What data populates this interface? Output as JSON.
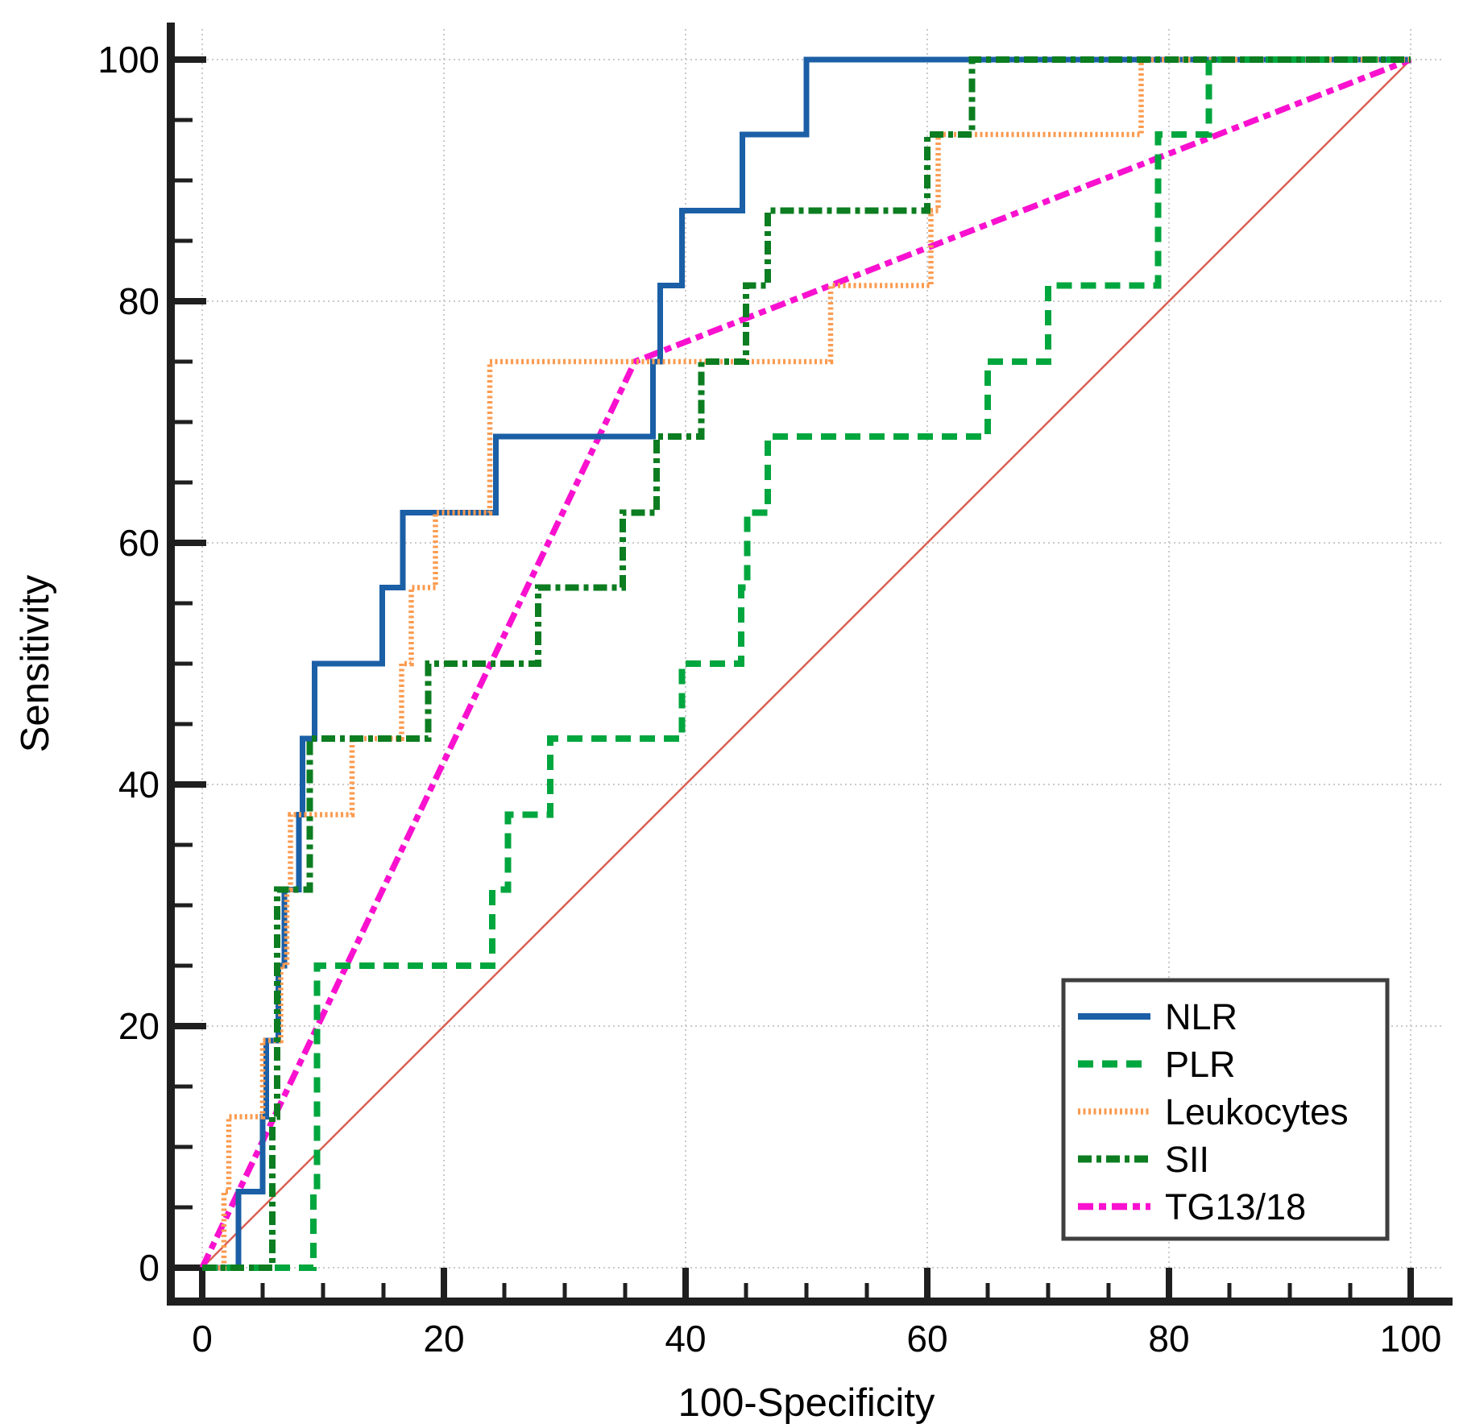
{
  "chart_data": {
    "type": "line",
    "subtype": "roc-curves",
    "title": "",
    "xlabel": "100-Specificity",
    "ylabel": "Sensitivity",
    "xlim": [
      0,
      100
    ],
    "ylim": [
      0,
      100
    ],
    "x_ticks": [
      0,
      20,
      40,
      60,
      80,
      100
    ],
    "y_ticks": [
      0,
      20,
      40,
      60,
      80,
      100
    ],
    "minor_tick_step": 5,
    "grid": "major-dotted",
    "legend_position": "lower-right",
    "grid_color": "#cacaca",
    "axis_color": "#1f1f1f",
    "legend_border_color": "#3f3f3f",
    "series": [
      {
        "name": "NLR",
        "color": "#1b5fa6",
        "line_style": "solid",
        "width": 7,
        "z": 2,
        "in_legend": true,
        "points": [
          [
            0,
            0
          ],
          [
            3,
            0
          ],
          [
            3,
            6.3
          ],
          [
            5,
            6.3
          ],
          [
            5,
            12.5
          ],
          [
            5.3,
            12.5
          ],
          [
            5.3,
            18.8
          ],
          [
            6.3,
            18.8
          ],
          [
            6.3,
            25
          ],
          [
            6.8,
            25
          ],
          [
            6.8,
            31.3
          ],
          [
            8,
            31.3
          ],
          [
            8,
            37.5
          ],
          [
            8.3,
            37.5
          ],
          [
            8.3,
            43.8
          ],
          [
            9.3,
            43.8
          ],
          [
            9.3,
            50
          ],
          [
            14.9,
            50
          ],
          [
            14.9,
            56.3
          ],
          [
            16.6,
            56.3
          ],
          [
            16.6,
            62.5
          ],
          [
            24.3,
            62.5
          ],
          [
            24.3,
            68.8
          ],
          [
            37.3,
            68.8
          ],
          [
            37.3,
            75
          ],
          [
            37.9,
            75
          ],
          [
            37.9,
            81.3
          ],
          [
            39.7,
            81.3
          ],
          [
            39.7,
            87.5
          ],
          [
            44.7,
            87.5
          ],
          [
            44.7,
            93.8
          ],
          [
            50,
            93.8
          ],
          [
            50,
            100
          ],
          [
            100,
            100
          ]
        ]
      },
      {
        "name": "PLR",
        "color": "#00a63e",
        "line_style": "dashed",
        "width": 8,
        "z": 4,
        "in_legend": true,
        "points": [
          [
            0,
            0
          ],
          [
            9.2,
            0
          ],
          [
            9.2,
            6.3
          ],
          [
            9.5,
            6.3
          ],
          [
            9.5,
            25
          ],
          [
            24,
            25
          ],
          [
            24,
            31.3
          ],
          [
            25.3,
            31.3
          ],
          [
            25.3,
            37.5
          ],
          [
            28.8,
            37.5
          ],
          [
            28.8,
            43.8
          ],
          [
            39.7,
            43.8
          ],
          [
            39.7,
            50
          ],
          [
            44.6,
            50
          ],
          [
            44.6,
            56.3
          ],
          [
            45.1,
            56.3
          ],
          [
            45.1,
            62.5
          ],
          [
            46.8,
            62.5
          ],
          [
            46.8,
            68.8
          ],
          [
            65,
            68.8
          ],
          [
            65,
            75
          ],
          [
            70,
            75
          ],
          [
            70,
            81.3
          ],
          [
            79.1,
            81.3
          ],
          [
            79.1,
            93.8
          ],
          [
            83.3,
            93.8
          ],
          [
            83.3,
            100
          ],
          [
            100,
            100
          ]
        ]
      },
      {
        "name": "Leukocytes",
        "color": "#fb9b50",
        "line_style": "dotted",
        "width": 6.5,
        "z": 3,
        "in_legend": true,
        "points": [
          [
            0,
            0
          ],
          [
            1.8,
            0
          ],
          [
            1.8,
            6.3
          ],
          [
            2.2,
            6.3
          ],
          [
            2.2,
            12.5
          ],
          [
            5,
            12.5
          ],
          [
            5,
            18.8
          ],
          [
            6.5,
            18.8
          ],
          [
            6.5,
            25
          ],
          [
            7,
            25
          ],
          [
            7,
            31.3
          ],
          [
            7.3,
            31.3
          ],
          [
            7.3,
            37.5
          ],
          [
            12.4,
            37.5
          ],
          [
            12.4,
            43.8
          ],
          [
            16.5,
            43.8
          ],
          [
            16.5,
            50
          ],
          [
            17.3,
            50
          ],
          [
            17.3,
            56.3
          ],
          [
            19.3,
            56.3
          ],
          [
            19.3,
            62.5
          ],
          [
            23.8,
            62.5
          ],
          [
            23.8,
            75
          ],
          [
            52,
            75
          ],
          [
            52,
            81.3
          ],
          [
            60.3,
            81.3
          ],
          [
            60.3,
            87.5
          ],
          [
            60.9,
            87.5
          ],
          [
            60.9,
            93.8
          ],
          [
            77.7,
            93.8
          ],
          [
            77.7,
            100
          ],
          [
            100,
            100
          ]
        ]
      },
      {
        "name": "SII",
        "color": "#0c7d20",
        "line_style": "dash-dot",
        "width": 8,
        "z": 5,
        "in_legend": true,
        "points": [
          [
            0,
            0
          ],
          [
            5.8,
            0
          ],
          [
            5.8,
            12.5
          ],
          [
            6.2,
            12.5
          ],
          [
            6.2,
            31.3
          ],
          [
            8.9,
            31.3
          ],
          [
            8.9,
            43.8
          ],
          [
            18.7,
            43.8
          ],
          [
            18.7,
            50
          ],
          [
            27.8,
            50
          ],
          [
            27.8,
            56.3
          ],
          [
            34.8,
            56.3
          ],
          [
            34.8,
            62.5
          ],
          [
            37.6,
            62.5
          ],
          [
            37.6,
            68.8
          ],
          [
            41.3,
            68.8
          ],
          [
            41.3,
            75
          ],
          [
            45,
            75
          ],
          [
            45,
            81.3
          ],
          [
            46.8,
            81.3
          ],
          [
            46.8,
            87.5
          ],
          [
            60,
            87.5
          ],
          [
            60,
            93.8
          ],
          [
            63.7,
            93.8
          ],
          [
            63.7,
            100
          ],
          [
            100,
            100
          ]
        ]
      },
      {
        "name": "TG13/18",
        "color": "#f911cf",
        "line_style": "dash-dot-2",
        "width": 7.5,
        "z": 1,
        "in_legend": true,
        "points": [
          [
            0,
            0
          ],
          [
            35.8,
            75
          ],
          [
            100,
            100
          ]
        ]
      },
      {
        "name": "reference-diagonal",
        "color": "#d96055",
        "line_style": "solid",
        "width": 2.5,
        "z": 0,
        "in_legend": false,
        "points": [
          [
            0,
            0
          ],
          [
            100,
            100
          ]
        ]
      }
    ]
  }
}
